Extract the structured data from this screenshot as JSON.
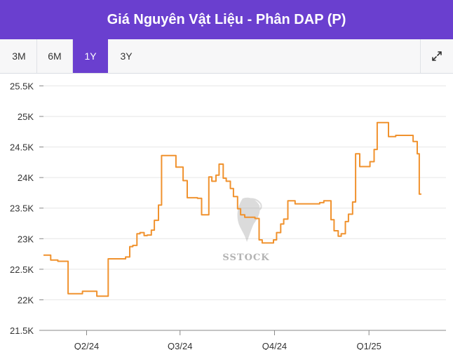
{
  "header": {
    "title": "Giá Nguyên Vật Liệu - Phân DAP (P)"
  },
  "toolbar": {
    "ranges": [
      "3M",
      "6M",
      "1Y",
      "3Y"
    ],
    "active": "1Y",
    "expand_icon": "expand-icon"
  },
  "watermark": {
    "text": "SSTOCK",
    "logo": "horse-head-logo"
  },
  "colors": {
    "accent": "#6a3fcf",
    "line": "#f0922e",
    "grid": "#e6e6e6",
    "axis": "#888888"
  },
  "chart_data": {
    "type": "line",
    "title": "",
    "xlabel": "",
    "ylabel": "",
    "ylim": [
      21500,
      25700
    ],
    "xlim": [
      "2024-02-19",
      "2025-03-17"
    ],
    "grid": true,
    "yticks": [
      21500,
      22000,
      22500,
      23000,
      23500,
      24000,
      24500,
      25000,
      25500
    ],
    "ytick_labels": [
      "21.5K",
      "22K",
      "22.5K",
      "23K",
      "23.5K",
      "24K",
      "24.5K",
      "25K",
      "25.5K"
    ],
    "xticks": [
      "2024-04-01",
      "2024-07-01",
      "2024-10-01",
      "2025-01-01"
    ],
    "xtick_labels": [
      "Q2/24",
      "Q3/24",
      "Q4/24",
      "Q1/25"
    ],
    "series": [
      {
        "name": "",
        "step": true,
        "points": [
          [
            "2024-02-19",
            22730
          ],
          [
            "2024-02-22",
            22730
          ],
          [
            "2024-02-26",
            22650
          ],
          [
            "2024-02-29",
            22650
          ],
          [
            "2024-03-04",
            22630
          ],
          [
            "2024-03-11",
            22630
          ],
          [
            "2024-03-14",
            22100
          ],
          [
            "2024-03-21",
            22100
          ],
          [
            "2024-03-25",
            22100
          ],
          [
            "2024-03-28",
            22140
          ],
          [
            "2024-04-01",
            22140
          ],
          [
            "2024-04-08",
            22140
          ],
          [
            "2024-04-11",
            22060
          ],
          [
            "2024-04-18",
            22060
          ],
          [
            "2024-04-22",
            22670
          ],
          [
            "2024-04-29",
            22670
          ],
          [
            "2024-05-06",
            22670
          ],
          [
            "2024-05-09",
            22700
          ],
          [
            "2024-05-13",
            22870
          ],
          [
            "2024-05-16",
            22890
          ],
          [
            "2024-05-20",
            23080
          ],
          [
            "2024-05-23",
            23100
          ],
          [
            "2024-05-27",
            23050
          ],
          [
            "2024-05-30",
            23060
          ],
          [
            "2024-06-03",
            23140
          ],
          [
            "2024-06-06",
            23300
          ],
          [
            "2024-06-10",
            23550
          ],
          [
            "2024-06-13",
            24360
          ],
          [
            "2024-06-17",
            24360
          ],
          [
            "2024-06-24",
            24360
          ],
          [
            "2024-06-27",
            24170
          ],
          [
            "2024-07-01",
            24170
          ],
          [
            "2024-07-04",
            23950
          ],
          [
            "2024-07-08",
            23670
          ],
          [
            "2024-07-15",
            23670
          ],
          [
            "2024-07-18",
            23660
          ],
          [
            "2024-07-22",
            23390
          ],
          [
            "2024-07-25",
            23390
          ],
          [
            "2024-07-29",
            24010
          ],
          [
            "2024-08-01",
            23940
          ],
          [
            "2024-08-05",
            24040
          ],
          [
            "2024-08-08",
            24220
          ],
          [
            "2024-08-12",
            23990
          ],
          [
            "2024-08-15",
            23940
          ],
          [
            "2024-08-19",
            23820
          ],
          [
            "2024-08-22",
            23690
          ],
          [
            "2024-08-26",
            23490
          ],
          [
            "2024-08-29",
            23390
          ],
          [
            "2024-09-02",
            23350
          ],
          [
            "2024-09-09",
            23350
          ],
          [
            "2024-09-12",
            23330
          ],
          [
            "2024-09-16",
            22980
          ],
          [
            "2024-09-19",
            22930
          ],
          [
            "2024-09-26",
            22930
          ],
          [
            "2024-09-30",
            22980
          ],
          [
            "2024-10-03",
            23100
          ],
          [
            "2024-10-07",
            23240
          ],
          [
            "2024-10-10",
            23320
          ],
          [
            "2024-10-14",
            23620
          ],
          [
            "2024-10-17",
            23620
          ],
          [
            "2024-10-21",
            23570
          ],
          [
            "2024-10-28",
            23570
          ],
          [
            "2024-11-04",
            23570
          ],
          [
            "2024-11-11",
            23570
          ],
          [
            "2024-11-14",
            23590
          ],
          [
            "2024-11-18",
            23620
          ],
          [
            "2024-11-21",
            23620
          ],
          [
            "2024-11-25",
            23310
          ],
          [
            "2024-11-28",
            23130
          ],
          [
            "2024-12-02",
            23040
          ],
          [
            "2024-12-05",
            23080
          ],
          [
            "2024-12-09",
            23280
          ],
          [
            "2024-12-12",
            23400
          ],
          [
            "2024-12-16",
            23600
          ],
          [
            "2024-12-19",
            24390
          ],
          [
            "2024-12-23",
            24180
          ],
          [
            "2024-12-30",
            24180
          ],
          [
            "2025-01-02",
            24260
          ],
          [
            "2025-01-06",
            24460
          ],
          [
            "2025-01-09",
            24900
          ],
          [
            "2025-01-16",
            24900
          ],
          [
            "2025-01-20",
            24670
          ],
          [
            "2025-01-23",
            24670
          ],
          [
            "2025-01-27",
            24690
          ],
          [
            "2025-02-03",
            24690
          ],
          [
            "2025-02-10",
            24690
          ],
          [
            "2025-02-13",
            24590
          ],
          [
            "2025-02-17",
            24390
          ],
          [
            "2025-02-19",
            23730
          ],
          [
            "2025-02-21",
            23730
          ]
        ]
      }
    ]
  }
}
